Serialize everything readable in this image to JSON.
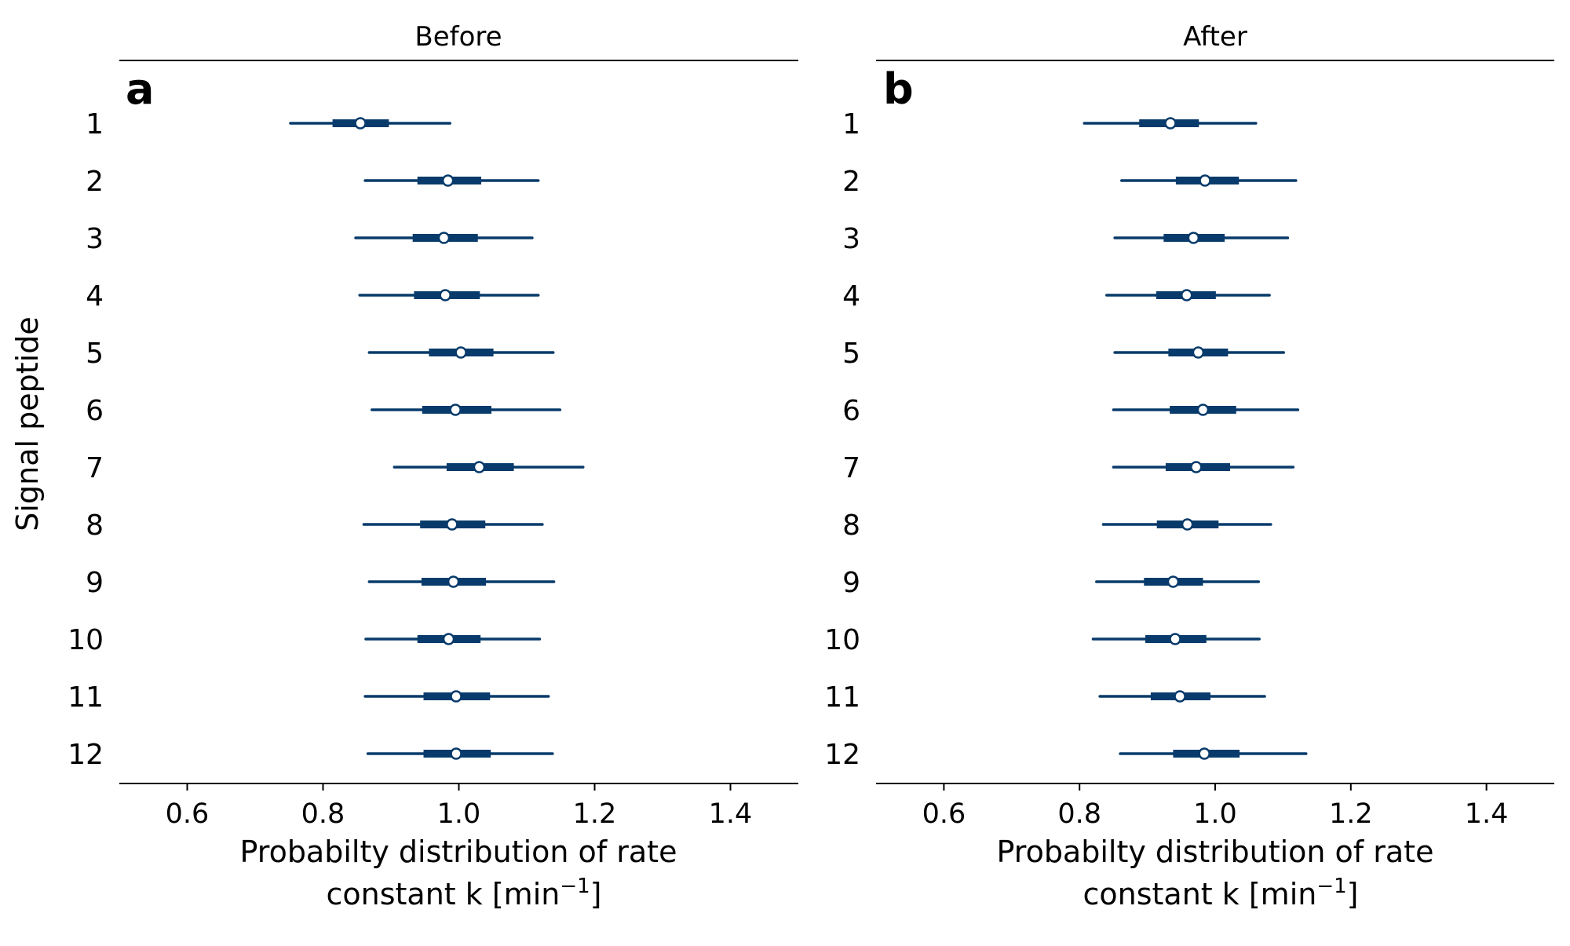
{
  "figure": {
    "ylabel": "Signal peptide",
    "color": "#083b6b",
    "marker_fill": "#ffffff"
  },
  "chart_data": [
    {
      "type": "forest",
      "panel_label": "a",
      "title": "Before",
      "xlabel_line1": "Probabilty distribution of rate",
      "xlabel_line2_pre": "constant k [min",
      "xlabel_sup": "−1",
      "xlabel_line2_post": "]",
      "xlim": [
        0.5,
        1.5
      ],
      "xticks": [
        0.6,
        0.8,
        1.0,
        1.2,
        1.4
      ],
      "xtick_labels": [
        "0.6",
        "0.8",
        "1.0",
        "1.2",
        "1.4"
      ],
      "categories": [
        "1",
        "2",
        "3",
        "4",
        "5",
        "6",
        "7",
        "8",
        "9",
        "10",
        "11",
        "12"
      ],
      "rows": [
        {
          "low": 0.752,
          "q1": 0.814,
          "median": 0.855,
          "q3": 0.897,
          "high": 0.987
        },
        {
          "low": 0.862,
          "q1": 0.939,
          "median": 0.984,
          "q3": 1.033,
          "high": 1.117
        },
        {
          "low": 0.848,
          "q1": 0.932,
          "median": 0.978,
          "q3": 1.028,
          "high": 1.108
        },
        {
          "low": 0.854,
          "q1": 0.934,
          "median": 0.98,
          "q3": 1.031,
          "high": 1.117
        },
        {
          "low": 0.868,
          "q1": 0.956,
          "median": 1.003,
          "q3": 1.051,
          "high": 1.139
        },
        {
          "low": 0.872,
          "q1": 0.946,
          "median": 0.995,
          "q3": 1.048,
          "high": 1.149
        },
        {
          "low": 0.905,
          "q1": 0.982,
          "median": 1.03,
          "q3": 1.081,
          "high": 1.183
        },
        {
          "low": 0.86,
          "q1": 0.943,
          "median": 0.99,
          "q3": 1.039,
          "high": 1.123
        },
        {
          "low": 0.868,
          "q1": 0.945,
          "median": 0.992,
          "q3": 1.04,
          "high": 1.14
        },
        {
          "low": 0.863,
          "q1": 0.939,
          "median": 0.985,
          "q3": 1.032,
          "high": 1.119
        },
        {
          "low": 0.862,
          "q1": 0.948,
          "median": 0.996,
          "q3": 1.046,
          "high": 1.132
        },
        {
          "low": 0.866,
          "q1": 0.948,
          "median": 0.996,
          "q3": 1.047,
          "high": 1.138
        }
      ]
    },
    {
      "type": "forest",
      "panel_label": "b",
      "title": "After",
      "xlabel_line1": "Probabilty distribution of rate",
      "xlabel_line2_pre": "constant k [min",
      "xlabel_sup": "−1",
      "xlabel_line2_post": "]",
      "xlim": [
        0.5,
        1.5
      ],
      "xticks": [
        0.6,
        0.8,
        1.0,
        1.2,
        1.4
      ],
      "xtick_labels": [
        "0.6",
        "0.8",
        "1.0",
        "1.2",
        "1.4"
      ],
      "categories": [
        "1",
        "2",
        "3",
        "4",
        "5",
        "6",
        "7",
        "8",
        "9",
        "10",
        "11",
        "12"
      ],
      "rows": [
        {
          "low": 0.807,
          "q1": 0.888,
          "median": 0.934,
          "q3": 0.976,
          "high": 1.06
        },
        {
          "low": 0.862,
          "q1": 0.942,
          "median": 0.985,
          "q3": 1.035,
          "high": 1.119
        },
        {
          "low": 0.852,
          "q1": 0.924,
          "median": 0.968,
          "q3": 1.014,
          "high": 1.107
        },
        {
          "low": 0.84,
          "q1": 0.913,
          "median": 0.958,
          "q3": 1.001,
          "high": 1.08
        },
        {
          "low": 0.852,
          "q1": 0.931,
          "median": 0.975,
          "q3": 1.019,
          "high": 1.101
        },
        {
          "low": 0.85,
          "q1": 0.933,
          "median": 0.982,
          "q3": 1.031,
          "high": 1.122
        },
        {
          "low": 0.85,
          "q1": 0.927,
          "median": 0.972,
          "q3": 1.022,
          "high": 1.115
        },
        {
          "low": 0.835,
          "q1": 0.914,
          "median": 0.959,
          "q3": 1.005,
          "high": 1.082
        },
        {
          "low": 0.825,
          "q1": 0.895,
          "median": 0.938,
          "q3": 0.982,
          "high": 1.064
        },
        {
          "low": 0.82,
          "q1": 0.897,
          "median": 0.941,
          "q3": 0.987,
          "high": 1.065
        },
        {
          "low": 0.83,
          "q1": 0.905,
          "median": 0.948,
          "q3": 0.993,
          "high": 1.073
        },
        {
          "low": 0.86,
          "q1": 0.938,
          "median": 0.984,
          "q3": 1.036,
          "high": 1.134
        }
      ]
    }
  ]
}
